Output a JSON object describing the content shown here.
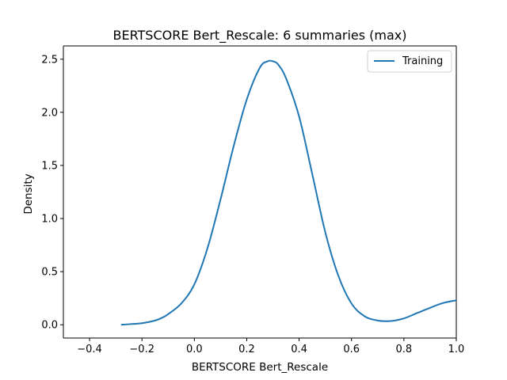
{
  "chart_data": {
    "type": "line",
    "title": "BERTSCORE Bert_Rescale: 6 summaries (max)",
    "xlabel": "BERTSCORE Bert_Rescale",
    "ylabel": "Density",
    "xlim": [
      -0.5,
      1.0
    ],
    "ylim": [
      -0.125,
      2.625
    ],
    "xticks": [
      -0.4,
      -0.2,
      0.0,
      0.2,
      0.4,
      0.6,
      0.8,
      1.0
    ],
    "xtick_labels": [
      "−0.4",
      "−0.2",
      "0.0",
      "0.2",
      "0.4",
      "0.6",
      "0.8",
      "1.0"
    ],
    "yticks": [
      0.0,
      0.5,
      1.0,
      1.5,
      2.0,
      2.5
    ],
    "ytick_labels": [
      "0.0",
      "0.5",
      "1.0",
      "1.5",
      "2.0",
      "2.5"
    ],
    "grid": false,
    "legend": "top-right",
    "series": [
      {
        "name": "Training",
        "color": "#1f77b4",
        "x": [
          -0.28,
          -0.25,
          -0.2,
          -0.15,
          -0.12,
          -0.1,
          -0.05,
          0.0,
          0.05,
          0.1,
          0.15,
          0.2,
          0.25,
          0.28,
          0.3,
          0.32,
          0.35,
          0.4,
          0.45,
          0.5,
          0.55,
          0.6,
          0.65,
          0.7,
          0.75,
          0.8,
          0.85,
          0.9,
          0.95,
          1.0
        ],
        "y": [
          0.0,
          0.005,
          0.015,
          0.04,
          0.07,
          0.1,
          0.2,
          0.38,
          0.72,
          1.18,
          1.68,
          2.12,
          2.42,
          2.48,
          2.48,
          2.45,
          2.32,
          1.96,
          1.42,
          0.87,
          0.46,
          0.2,
          0.08,
          0.04,
          0.035,
          0.06,
          0.11,
          0.16,
          0.205,
          0.23
        ]
      }
    ]
  }
}
